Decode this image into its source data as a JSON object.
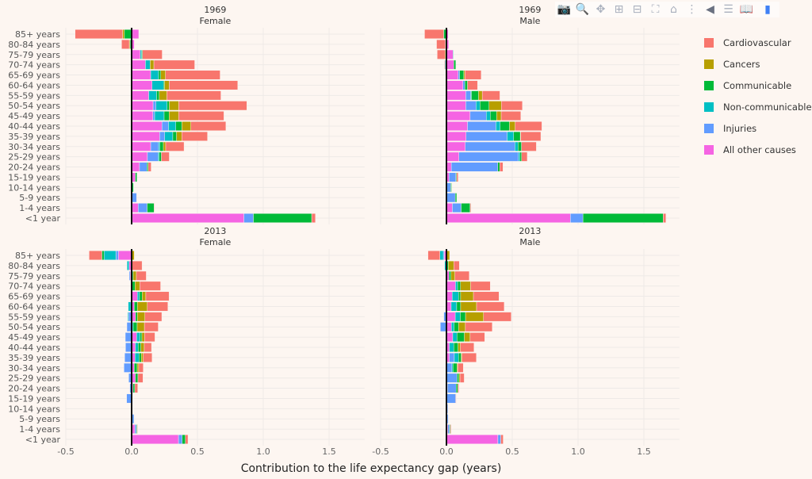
{
  "toolbar": {
    "icons": [
      "camera-icon",
      "zoom-icon",
      "pan-icon",
      "zoom-in-icon",
      "zoom-out-icon",
      "autoscale-icon",
      "home-icon",
      "spike-lines-icon",
      "hover-closest-icon",
      "hover-compare-icon",
      "docs-icon",
      "plotly-logo-icon"
    ]
  },
  "legend": {
    "items": [
      {
        "label": "Cardiovascular",
        "color": "#F8766D"
      },
      {
        "label": "Cancers",
        "color": "#B79F00"
      },
      {
        "label": "Communicable",
        "color": "#00BA38"
      },
      {
        "label": "Non-communicable",
        "color": "#00BFC4"
      },
      {
        "label": "Injuries",
        "color": "#619CFF"
      },
      {
        "label": "All other causes",
        "color": "#F564E3"
      }
    ]
  },
  "chart_data": {
    "type": "bar",
    "orientation": "horizontal",
    "barmode": "stacked",
    "xlabel": "Contribution to the life expectancy gap (years)",
    "xlim": [
      -0.5,
      1.77
    ],
    "xticks": [
      "-0.5",
      "0.0",
      "0.5",
      "1.0",
      "1.5"
    ],
    "grid": true,
    "legend_position": "right",
    "categories": [
      "85+ years",
      "80-84 years",
      "75-79 years",
      "70-74 years",
      "65-69 years",
      "60-64 years",
      "55-59 years",
      "50-54 years",
      "45-49 years",
      "40-44 years",
      "35-39 years",
      "30-34 years",
      "25-29 years",
      "20-24 years",
      "15-19 years",
      "10-14 years",
      "5-9 years",
      "1-4 years",
      "<1 year"
    ],
    "panels": [
      {
        "title": "1969",
        "subtitle": "Female",
        "series": [
          {
            "name": "Cardiovascular",
            "values": [
              -0.36,
              -0.058,
              0.15,
              0.31,
              0.415,
              0.52,
              0.41,
              0.517,
              0.344,
              0.266,
              0.195,
              0.139,
              0.06,
              0.022,
              0,
              0,
              0,
              0.004,
              0.028
            ]
          },
          {
            "name": "Cancers",
            "values": [
              -0.014,
              -0.006,
              0,
              0.028,
              0.036,
              0.036,
              0.058,
              0.072,
              0.072,
              0.068,
              0.04,
              0.018,
              0,
              0,
              0,
              0,
              0,
              0,
              0
            ]
          },
          {
            "name": "Communicable",
            "values": [
              -0.05,
              -0.012,
              0.006,
              0,
              0.016,
              0.008,
              0.02,
              0.016,
              0.038,
              0.046,
              0.028,
              0.026,
              0.016,
              0.01,
              0.012,
              0.014,
              0,
              0.052,
              0.443
            ]
          },
          {
            "name": "Non-communicable",
            "values": [
              -0.005,
              0,
              0.01,
              0.036,
              0.06,
              0.087,
              0.06,
              0.085,
              0.072,
              0.056,
              0.062,
              0.01,
              0.01,
              0,
              0,
              0,
              0,
              0,
              0
            ]
          },
          {
            "name": "Injuries",
            "values": [
              0,
              0,
              0,
              0,
              0,
              0,
              0,
              0.022,
              0.014,
              0.05,
              0.038,
              0.06,
              0.08,
              0.056,
              0,
              0,
              0.034,
              0.068,
              0.072
            ]
          },
          {
            "name": "All other causes",
            "values": [
              0.054,
              0.02,
              0.066,
              0.105,
              0.145,
              0.155,
              0.13,
              0.163,
              0.161,
              0.23,
              0.213,
              0.145,
              0.12,
              0.06,
              0.028,
              0,
              0.004,
              0.05,
              0.853
            ]
          }
        ]
      },
      {
        "title": "1969",
        "subtitle": "Male",
        "series": [
          {
            "name": "Cardiovascular",
            "values": [
              -0.145,
              -0.067,
              -0.06,
              -0.005,
              0.123,
              0.076,
              0.134,
              0.16,
              0.149,
              0.203,
              0.152,
              0.113,
              0.043,
              0.024,
              0.011,
              0,
              0,
              0.006,
              0.02
            ]
          },
          {
            "name": "Cancers",
            "values": [
              0,
              0,
              -0.01,
              0,
              0.009,
              0,
              0.028,
              0.093,
              0.035,
              0.043,
              0.004,
              0,
              0,
              0,
              0,
              0,
              0,
              0,
              0
            ]
          },
          {
            "name": "Communicable",
            "values": [
              -0.017,
              -0.008,
              0,
              0.015,
              0.032,
              0.02,
              0.054,
              0.069,
              0.048,
              0.071,
              0.05,
              0.026,
              0.013,
              0.015,
              0.006,
              0.006,
              0.011,
              0.067,
              0.61
            ]
          },
          {
            "name": "Non-communicable",
            "values": [
              -0.004,
              0,
              0.004,
              -0.01,
              0,
              0,
              0.006,
              0.03,
              0.03,
              0.032,
              0.05,
              0.024,
              0.011,
              0,
              0,
              0,
              0,
              0,
              0
            ]
          },
          {
            "name": "Injuries",
            "values": [
              0,
              0,
              0,
              0,
              0.011,
              0.015,
              0.037,
              0.078,
              0.123,
              0.216,
              0.312,
              0.377,
              0.452,
              0.353,
              0.052,
              0.033,
              0.067,
              0.067,
              0.095
            ]
          },
          {
            "name": "All other causes",
            "values": [
              0.013,
              0.017,
              0.05,
              0.056,
              0.089,
              0.125,
              0.147,
              0.147,
              0.18,
              0.16,
              0.149,
              0.143,
              0.095,
              0.037,
              0.02,
              0,
              0,
              0.045,
              0.942
            ]
          }
        ]
      },
      {
        "title": "2013",
        "subtitle": "Female",
        "series": [
          {
            "name": "Cardiovascular",
            "values": [
              -0.097,
              0.075,
              0.075,
              0.158,
              0.176,
              0.156,
              0.128,
              0.105,
              0.079,
              0.055,
              0.067,
              0.034,
              0.038,
              0.022,
              0.006,
              0,
              0,
              0.002,
              0.02
            ]
          },
          {
            "name": "Cancers",
            "values": [
              0.02,
              0.004,
              0.024,
              0.036,
              0.028,
              0.075,
              0.057,
              0.055,
              0.02,
              0.026,
              0.014,
              0.012,
              0,
              0,
              0,
              0,
              0,
              0,
              0
            ]
          },
          {
            "name": "Communicable",
            "values": [
              -0.016,
              0,
              0.012,
              0.026,
              0.02,
              0.024,
              0.014,
              0.03,
              0.014,
              0.02,
              0.018,
              0.022,
              0.02,
              0.014,
              0,
              0,
              0,
              0.006,
              0.024
            ]
          },
          {
            "name": "Non-communicable",
            "values": [
              -0.09,
              -0.015,
              0,
              0,
              0.016,
              -0.02,
              -0.006,
              0.012,
              0.026,
              0.022,
              0.03,
              0,
              0,
              0,
              0,
              0,
              0,
              0,
              0
            ]
          },
          {
            "name": "Injuries",
            "values": [
              -0.02,
              0,
              -0.008,
              0,
              0,
              -0.006,
              -0.024,
              -0.036,
              -0.048,
              -0.046,
              -0.053,
              -0.058,
              -0.022,
              -0.014,
              -0.038,
              0.004,
              0.018,
              0.012,
              0.028
            ]
          },
          {
            "name": "All other causes",
            "values": [
              -0.1,
              -0.02,
              -0.01,
              0,
              0.044,
              0.02,
              0.03,
              0,
              0.038,
              0.028,
              0.026,
              0.02,
              0.028,
              0.01,
              0,
              0,
              0,
              0.024,
              0.356
            ]
          }
        ]
      },
      {
        "title": "2013",
        "subtitle": "Male",
        "series": [
          {
            "name": "Cardiovascular",
            "values": [
              -0.09,
              0.042,
              0.109,
              0.149,
              0.194,
              0.21,
              0.21,
              0.204,
              0.111,
              0.103,
              0.109,
              0.042,
              0.032,
              0.008,
              0.004,
              0,
              0,
              0.006,
              0.018
            ]
          },
          {
            "name": "Cancers",
            "values": [
              0.024,
              0.042,
              0.03,
              0.077,
              0.097,
              0.121,
              0.137,
              0.052,
              0.044,
              0.018,
              0.006,
              0.006,
              0.008,
              0,
              0,
              0,
              0,
              0,
              0
            ]
          },
          {
            "name": "Communicable",
            "values": [
              0,
              0.014,
              0.014,
              0.022,
              0.016,
              0.03,
              0.04,
              0.034,
              0.056,
              0.032,
              0.02,
              0.03,
              0.014,
              0.012,
              0,
              0,
              0,
              0.006,
              0
            ]
          },
          {
            "name": "Non-communicable",
            "values": [
              -0.026,
              -0.014,
              0,
              0.016,
              0.048,
              0.042,
              0.038,
              0.02,
              0.032,
              0.034,
              0.032,
              0.008,
              0,
              0,
              0,
              0,
              0,
              0,
              0
            ]
          },
          {
            "name": "Injuries",
            "values": [
              -0.008,
              0,
              0,
              0,
              0,
              0,
              -0.02,
              -0.046,
              0,
              0,
              0.038,
              0.042,
              0.077,
              0.066,
              0.07,
              0.01,
              0.008,
              0.012,
              0.022
            ]
          },
          {
            "name": "All other causes",
            "values": [
              -0.016,
              0,
              0.02,
              0.069,
              0.044,
              0.036,
              0.067,
              0.038,
              0.048,
              0.022,
              0.022,
              0,
              0.004,
              0.008,
              0,
              0,
              0.006,
              0.01,
              0.391
            ]
          }
        ]
      }
    ]
  }
}
